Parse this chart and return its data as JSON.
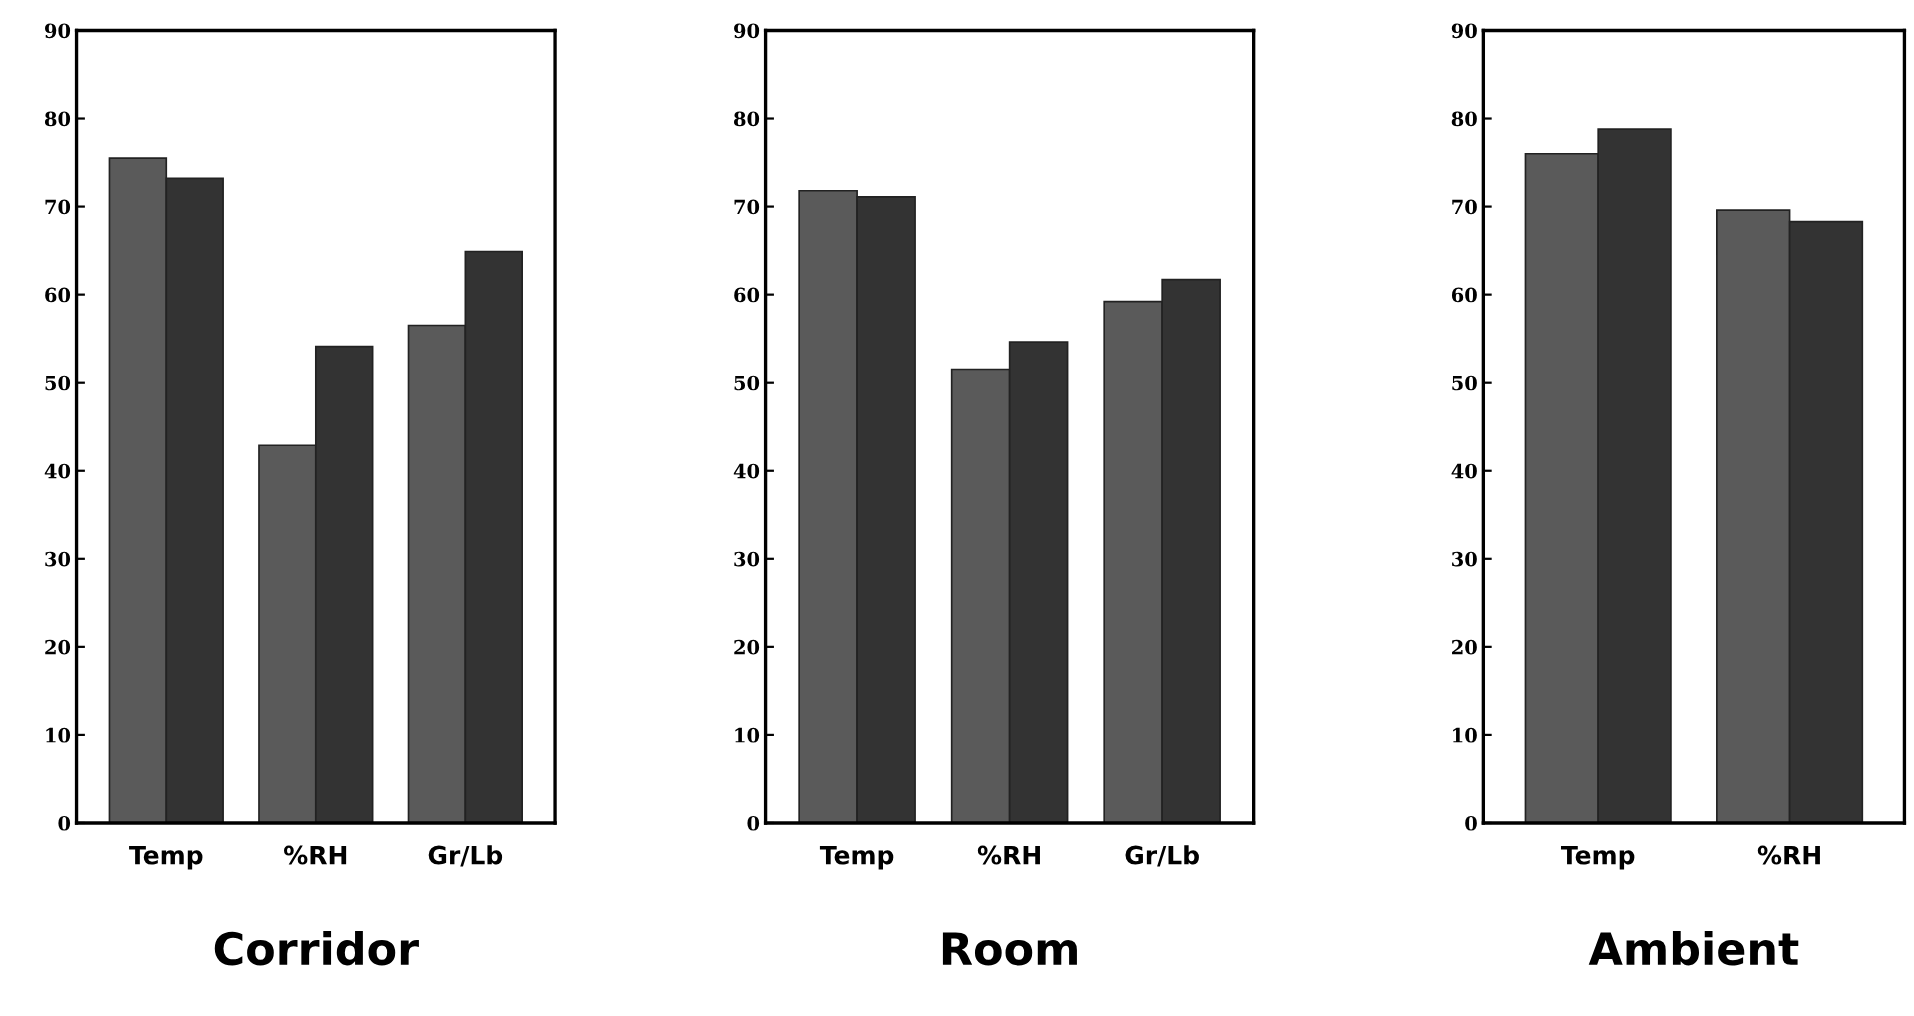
{
  "chart_data": [
    {
      "type": "bar",
      "title": "Corridor",
      "categories": [
        "Temp",
        "%RH",
        "Gr/Lb"
      ],
      "ylim": [
        0,
        90
      ],
      "yticks": [
        0,
        10,
        20,
        30,
        40,
        50,
        60,
        70,
        80,
        90
      ],
      "series": [
        {
          "color": "#5a5a5a",
          "values": [
            75.5,
            42.9,
            56.5
          ]
        },
        {
          "color": "#333333",
          "values": [
            73.2,
            54.1,
            64.9
          ]
        }
      ]
    },
    {
      "type": "bar",
      "title": "Room",
      "categories": [
        "Temp",
        "%RH",
        "Gr/Lb"
      ],
      "ylim": [
        0,
        90
      ],
      "yticks": [
        0,
        10,
        20,
        30,
        40,
        50,
        60,
        70,
        80,
        90
      ],
      "series": [
        {
          "color": "#5a5a5a",
          "values": [
            71.8,
            51.5,
            59.2
          ]
        },
        {
          "color": "#333333",
          "values": [
            71.1,
            54.6,
            61.7
          ]
        }
      ]
    },
    {
      "type": "bar",
      "title": "Ambient",
      "categories": [
        "Temp",
        "%RH"
      ],
      "ylim": [
        0,
        90
      ],
      "yticks": [
        0,
        10,
        20,
        30,
        40,
        50,
        60,
        70,
        80,
        90
      ],
      "series": [
        {
          "color": "#5a5a5a",
          "values": [
            76.0,
            69.6
          ]
        },
        {
          "color": "#333333",
          "values": [
            78.8,
            68.3
          ]
        }
      ]
    }
  ]
}
